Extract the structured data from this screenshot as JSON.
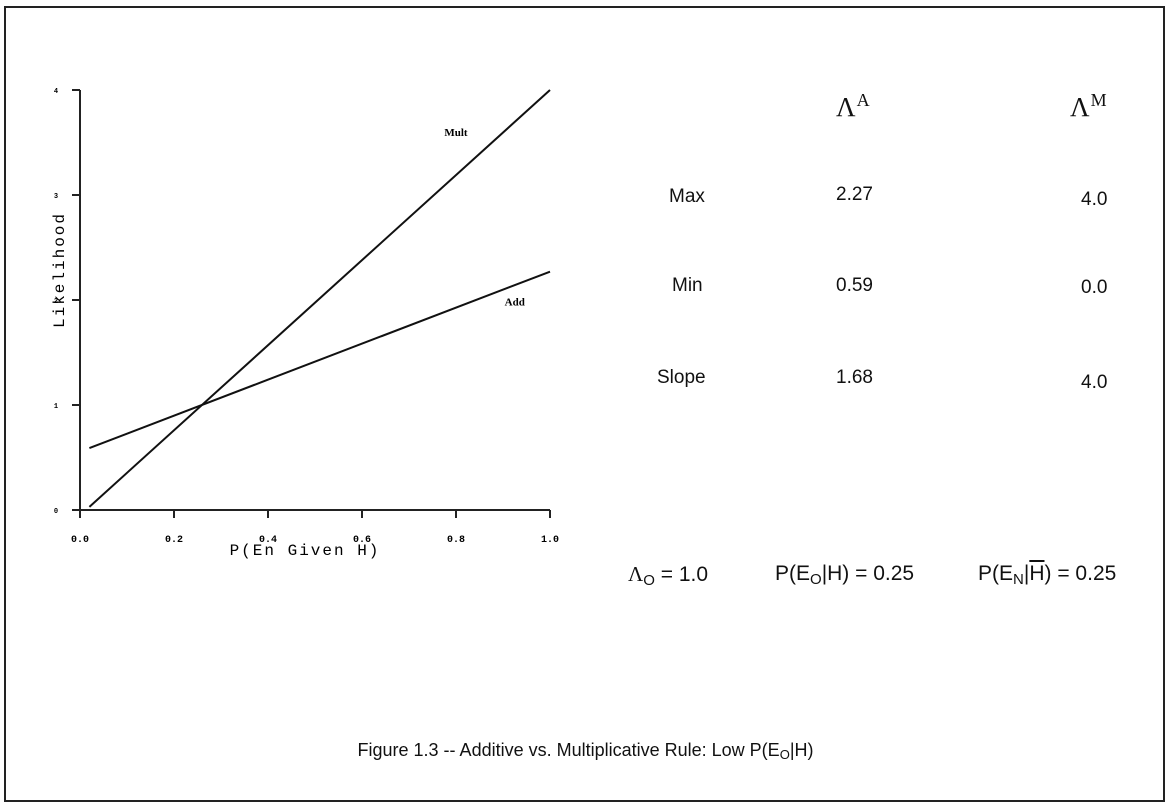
{
  "chart_data": {
    "type": "line",
    "xlabel": "P(En Given H)",
    "ylabel": "Likelihood",
    "xlim": [
      0.0,
      1.0
    ],
    "ylim": [
      0,
      4
    ],
    "x_ticks": [
      "0.0",
      "0.2",
      "0.4",
      "0.6",
      "0.8",
      "1.0"
    ],
    "y_ticks": [
      "0",
      "1",
      "2",
      "3",
      "4"
    ],
    "series": [
      {
        "name": "Mult",
        "x": [
          0.0,
          1.0
        ],
        "y": [
          0.0,
          4.0
        ]
      },
      {
        "name": "Add",
        "x": [
          0.0,
          1.0
        ],
        "y": [
          0.59,
          2.27
        ]
      }
    ],
    "grid": false,
    "legend": "inline labels"
  },
  "table": {
    "col_headers": [
      {
        "base": "Λ",
        "sup": "A"
      },
      {
        "base": "Λ",
        "sup": "M"
      }
    ],
    "rows": [
      {
        "label": "Max",
        "a": "2.27",
        "m": "4.0"
      },
      {
        "label": "Min",
        "a": "0.59",
        "m": "0.0"
      },
      {
        "label": "Slope",
        "a": "1.68",
        "m": "4.0"
      }
    ]
  },
  "params": {
    "lambda_base": "Λ",
    "lambda_sub": "O",
    "lambda_val": "= 1.0",
    "p1_pre": "P(E",
    "p1_sub": "O",
    "p1_post": "|H) = 0.25",
    "p2_pre": "P(E",
    "p2_sub": "N",
    "p2_mid": "|",
    "p2_bar": "H",
    "p2_post": ") = 0.25"
  },
  "caption": {
    "pre": "Figure 1.3 -- Additive vs. Multiplicative Rule: Low P(E",
    "sub": "O",
    "post": "|H)"
  }
}
